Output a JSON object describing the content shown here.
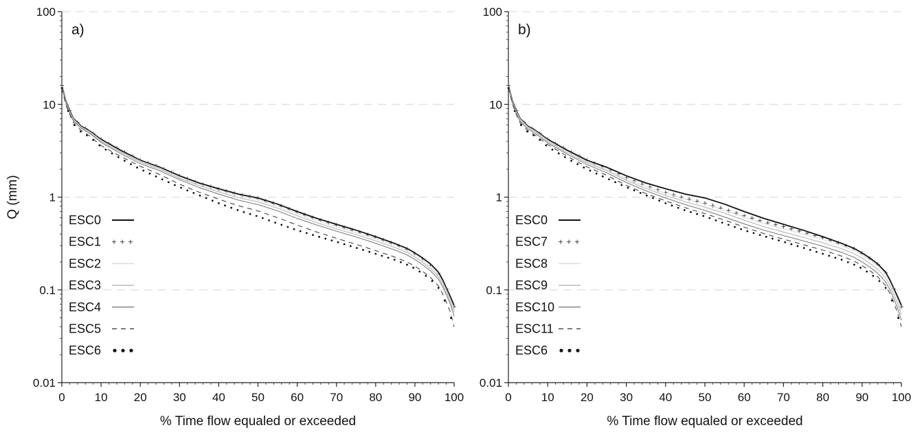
{
  "chart_data": [
    {
      "type": "line",
      "panel_label": "a)",
      "xlabel": "% Time flow equaled or exceeded",
      "ylabel": "Q (mm)",
      "xlim": [
        0,
        100
      ],
      "ylim": [
        0.01,
        100
      ],
      "y_scale": "log",
      "x_ticks": [
        "0",
        "10",
        "20",
        "30",
        "40",
        "50",
        "60",
        "70",
        "80",
        "90",
        "100"
      ],
      "y_ticks": [
        "0.01",
        "0.1",
        "1",
        "10",
        "100"
      ],
      "grid": "horizontal dashed",
      "legend_position": "lower-left",
      "x": [
        0,
        1,
        2,
        3,
        5,
        7,
        10,
        15,
        20,
        25,
        30,
        35,
        40,
        45,
        50,
        55,
        60,
        65,
        70,
        75,
        80,
        85,
        88,
        90,
        92,
        94,
        96,
        97,
        98,
        99,
        100
      ],
      "series": [
        {
          "name": "ESC0",
          "style": "solid-dark",
          "values": [
            16.0,
            11.0,
            8.6,
            7.0,
            5.8,
            5.2,
            4.2,
            3.2,
            2.5,
            2.1,
            1.7,
            1.42,
            1.23,
            1.08,
            0.98,
            0.84,
            0.7,
            0.59,
            0.51,
            0.44,
            0.375,
            0.315,
            0.28,
            0.25,
            0.22,
            0.19,
            0.155,
            0.13,
            0.105,
            0.085,
            0.068
          ]
        },
        {
          "name": "ESC1",
          "style": "plus",
          "values": [
            16.0,
            11.0,
            8.6,
            7.0,
            5.8,
            5.2,
            4.2,
            3.2,
            2.5,
            2.1,
            1.69,
            1.41,
            1.22,
            1.07,
            0.97,
            0.83,
            0.69,
            0.58,
            0.5,
            0.43,
            0.37,
            0.31,
            0.275,
            0.245,
            0.215,
            0.185,
            0.15,
            0.127,
            0.103,
            0.083,
            0.066
          ]
        },
        {
          "name": "ESC2",
          "style": "solid-lightest",
          "values": [
            15.8,
            10.8,
            8.4,
            6.9,
            5.7,
            5.1,
            4.1,
            3.1,
            2.45,
            2.05,
            1.65,
            1.38,
            1.19,
            1.04,
            0.94,
            0.8,
            0.67,
            0.56,
            0.48,
            0.415,
            0.355,
            0.3,
            0.265,
            0.237,
            0.208,
            0.179,
            0.145,
            0.123,
            0.1,
            0.08,
            0.062
          ]
        },
        {
          "name": "ESC3",
          "style": "solid-light",
          "values": [
            15.6,
            10.6,
            8.3,
            6.8,
            5.6,
            5.0,
            4.0,
            3.05,
            2.4,
            2.0,
            1.6,
            1.33,
            1.14,
            0.99,
            0.89,
            0.76,
            0.63,
            0.53,
            0.455,
            0.395,
            0.338,
            0.285,
            0.253,
            0.226,
            0.198,
            0.17,
            0.138,
            0.117,
            0.095,
            0.076,
            0.058
          ]
        },
        {
          "name": "ESC4",
          "style": "solid-mid",
          "values": [
            15.4,
            10.4,
            8.1,
            6.6,
            5.5,
            4.9,
            3.9,
            2.95,
            2.3,
            1.92,
            1.54,
            1.27,
            1.08,
            0.93,
            0.83,
            0.71,
            0.59,
            0.5,
            0.43,
            0.372,
            0.318,
            0.268,
            0.238,
            0.213,
            0.186,
            0.16,
            0.13,
            0.11,
            0.089,
            0.071,
            0.052
          ]
        },
        {
          "name": "ESC5",
          "style": "dashed",
          "values": [
            15.0,
            10.0,
            7.8,
            6.3,
            5.2,
            4.6,
            3.6,
            2.75,
            2.15,
            1.75,
            1.38,
            1.13,
            0.95,
            0.81,
            0.71,
            0.6,
            0.5,
            0.42,
            0.36,
            0.31,
            0.265,
            0.225,
            0.2,
            0.18,
            0.158,
            0.136,
            0.11,
            0.092,
            0.074,
            0.058,
            0.04
          ]
        },
        {
          "name": "ESC6",
          "style": "dotted",
          "values": [
            15.0,
            10.0,
            7.6,
            6.1,
            5.0,
            4.5,
            3.5,
            2.6,
            2.0,
            1.6,
            1.28,
            1.05,
            0.86,
            0.72,
            0.62,
            0.52,
            0.44,
            0.38,
            0.33,
            0.285,
            0.245,
            0.21,
            0.187,
            0.17,
            0.15,
            0.13,
            0.105,
            0.088,
            0.07,
            0.054,
            0.036
          ]
        }
      ]
    },
    {
      "type": "line",
      "panel_label": "b)",
      "xlabel": "% Time flow equaled or exceeded",
      "ylabel": "",
      "xlim": [
        0,
        100
      ],
      "ylim": [
        0.01,
        100
      ],
      "y_scale": "log",
      "x_ticks": [
        "0",
        "10",
        "20",
        "30",
        "40",
        "50",
        "60",
        "70",
        "80",
        "90",
        "100"
      ],
      "y_ticks": [
        "0.01",
        "0.1",
        "1",
        "10",
        "100"
      ],
      "grid": "horizontal dashed",
      "legend_position": "lower-left",
      "x": [
        0,
        1,
        2,
        3,
        5,
        7,
        10,
        15,
        20,
        25,
        30,
        35,
        40,
        45,
        50,
        55,
        60,
        65,
        70,
        75,
        80,
        85,
        88,
        90,
        92,
        94,
        96,
        97,
        98,
        99,
        100
      ],
      "series": [
        {
          "name": "ESC0",
          "style": "solid-dark",
          "values": [
            16.0,
            11.0,
            8.6,
            7.0,
            5.8,
            5.2,
            4.2,
            3.2,
            2.5,
            2.1,
            1.7,
            1.42,
            1.23,
            1.08,
            0.98,
            0.84,
            0.7,
            0.59,
            0.51,
            0.44,
            0.375,
            0.315,
            0.28,
            0.25,
            0.22,
            0.19,
            0.155,
            0.13,
            0.105,
            0.085,
            0.068
          ]
        },
        {
          "name": "ESC7",
          "style": "plus",
          "values": [
            16.0,
            11.0,
            8.6,
            7.0,
            5.8,
            5.2,
            4.2,
            3.2,
            2.5,
            2.05,
            1.62,
            1.33,
            1.12,
            0.97,
            0.86,
            0.74,
            0.63,
            0.54,
            0.48,
            0.42,
            0.365,
            0.31,
            0.277,
            0.248,
            0.218,
            0.188,
            0.153,
            0.128,
            0.103,
            0.083,
            0.066
          ]
        },
        {
          "name": "ESC8",
          "style": "solid-lightest",
          "values": [
            15.8,
            10.8,
            8.4,
            6.9,
            5.7,
            5.1,
            4.1,
            3.1,
            2.42,
            2.0,
            1.58,
            1.3,
            1.1,
            0.95,
            0.84,
            0.72,
            0.61,
            0.52,
            0.455,
            0.4,
            0.348,
            0.298,
            0.265,
            0.238,
            0.21,
            0.18,
            0.147,
            0.123,
            0.099,
            0.079,
            0.06
          ]
        },
        {
          "name": "ESC9",
          "style": "solid-light",
          "values": [
            15.6,
            10.6,
            8.2,
            6.7,
            5.6,
            5.0,
            4.0,
            3.0,
            2.35,
            1.93,
            1.52,
            1.24,
            1.04,
            0.89,
            0.78,
            0.67,
            0.565,
            0.48,
            0.42,
            0.37,
            0.322,
            0.276,
            0.245,
            0.22,
            0.193,
            0.166,
            0.135,
            0.113,
            0.091,
            0.072,
            0.054
          ]
        },
        {
          "name": "ESC10",
          "style": "solid-mid",
          "values": [
            15.4,
            10.4,
            8.0,
            6.5,
            5.4,
            4.8,
            3.85,
            2.9,
            2.25,
            1.83,
            1.44,
            1.17,
            0.98,
            0.83,
            0.72,
            0.61,
            0.515,
            0.44,
            0.385,
            0.338,
            0.295,
            0.252,
            0.224,
            0.2,
            0.176,
            0.151,
            0.122,
            0.102,
            0.082,
            0.064,
            0.047
          ]
        },
        {
          "name": "ESC11",
          "style": "dashed",
          "values": [
            15.2,
            10.2,
            7.8,
            6.3,
            5.2,
            4.6,
            3.7,
            2.75,
            2.12,
            1.72,
            1.34,
            1.09,
            0.91,
            0.77,
            0.665,
            0.565,
            0.475,
            0.405,
            0.352,
            0.308,
            0.268,
            0.23,
            0.204,
            0.183,
            0.161,
            0.138,
            0.111,
            0.093,
            0.074,
            0.057,
            0.04
          ]
        },
        {
          "name": "ESC6",
          "style": "dotted",
          "values": [
            15.0,
            10.0,
            7.6,
            6.1,
            5.0,
            4.5,
            3.5,
            2.6,
            2.0,
            1.6,
            1.28,
            1.05,
            0.86,
            0.72,
            0.62,
            0.52,
            0.44,
            0.38,
            0.33,
            0.285,
            0.245,
            0.21,
            0.187,
            0.17,
            0.15,
            0.13,
            0.105,
            0.088,
            0.07,
            0.054,
            0.036
          ]
        }
      ]
    }
  ]
}
